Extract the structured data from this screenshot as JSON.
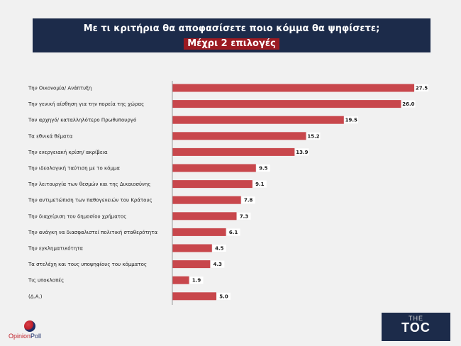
{
  "header": {
    "title": "Με τι κριτήρια θα αποφασίσετε ποιο κόμμα θα ψηφίσετε;",
    "subtitle": "Μέχρι 2 επιλογές"
  },
  "logos": {
    "left_brand_red": "Opinion",
    "left_brand_blue": "Poll",
    "right_the": "THE",
    "right_main": "TOC"
  },
  "colors": {
    "bar": "#c8474c",
    "header_bg": "#1c2b4a",
    "subtitle_bg": "#9b1b22"
  },
  "chart_data": {
    "type": "bar",
    "orientation": "horizontal",
    "title": "Με τι κριτήρια θα αποφασίσετε ποιο κόμμα θα ψηφίσετε;",
    "subtitle": "Μέχρι 2 επιλογές",
    "categories": [
      "Την Οικονομία/ Ανάπτυξη",
      "Την γενική αίσθηση για την πορεία της χώρας",
      "Τον αρχηγό/ καταλληλότερο Πρωθυπουργό",
      "Τα εθνικά θέματα",
      "Την ενεργειακή κρίση/ ακρίβεια",
      "Την ιδεολογική ταύτιση με το κόμμα",
      "Την λειτουργία των θεσμών και της Δικαιοσύνης",
      "Την αντιμετώπιση των παθογενειών του Κράτους",
      "Την διαχείριση του δημοσίου χρήματος",
      "Την ανάγκη να διασφαλιστεί πολιτική σταθερότητα",
      "Την εγκληματικότητα",
      "Τα στελέχη και τους υποψηφίους του κόμματος",
      "Τις υποκλοπές",
      "(Δ.Α.)"
    ],
    "values": [
      27.5,
      26.0,
      19.5,
      15.2,
      13.9,
      9.5,
      9.1,
      7.8,
      7.3,
      6.1,
      4.5,
      4.3,
      1.9,
      5.0
    ],
    "value_labels": [
      "27.5",
      "26.0",
      "19.5",
      "15.2",
      "13.9",
      "9.5",
      "9.1",
      "7.8",
      "7.3",
      "6.1",
      "4.5",
      "4.3",
      "1.9",
      "5.0"
    ],
    "xlim": [
      0,
      27.5
    ],
    "grid": false,
    "legend": "none"
  }
}
